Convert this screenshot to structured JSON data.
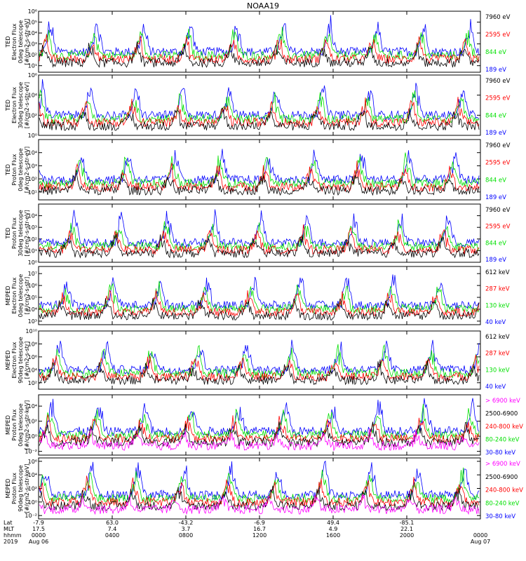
{
  "title": "NOAA19",
  "colors": {
    "black": "#000000",
    "red": "#ff0000",
    "green": "#00e000",
    "blue": "#0000ff",
    "magenta": "#ff00ff"
  },
  "chart_data": [
    {
      "type": "line",
      "title": "",
      "ylabel": [
        "TED",
        "Electron Flux",
        "0deg telescope",
        "[#/cm2-s-str-eV]"
      ],
      "ytick_labels": [
        "10¹",
        "10²",
        "10³",
        "10⁴",
        "10⁵",
        "10⁶"
      ],
      "yexp_range": [
        0.4,
        6
      ],
      "series": [
        {
          "name": "7960 eV",
          "color": "#000000"
        },
        {
          "name": "2595 eV",
          "color": "#ff0000"
        },
        {
          "name": "844 eV",
          "color": "#00e000"
        },
        {
          "name": "189 eV",
          "color": "#0000ff"
        }
      ]
    },
    {
      "type": "line",
      "title": "",
      "ylabel": [
        "TED",
        "Electron Flux",
        "30deg telescope",
        "[#/cm2-s-str-eV]"
      ],
      "ytick_labels": [
        "10⁰",
        "10²",
        "10⁴",
        "10⁶"
      ],
      "yexp_range": [
        0,
        6
      ],
      "series": [
        {
          "name": "7960 eV",
          "color": "#000000"
        },
        {
          "name": "2595 eV",
          "color": "#ff0000"
        },
        {
          "name": "844 eV",
          "color": "#00e000"
        },
        {
          "name": "189 eV",
          "color": "#0000ff"
        }
      ]
    },
    {
      "type": "line",
      "title": "",
      "ylabel": [
        "TED",
        "Proton Flux",
        "0deg telescope",
        "[#/cm2-s-str-eV]"
      ],
      "ytick_labels": [
        "10¹",
        "10²",
        "10³",
        "10⁴"
      ],
      "yexp_range": [
        0.4,
        5
      ],
      "series": [
        {
          "name": "7960 eV",
          "color": "#000000"
        },
        {
          "name": "2595 eV",
          "color": "#ff0000"
        },
        {
          "name": "844 eV",
          "color": "#00e000"
        },
        {
          "name": "189 eV",
          "color": "#0000ff"
        }
      ]
    },
    {
      "type": "line",
      "title": "",
      "ylabel": [
        "TED",
        "Proton Flux",
        "30deg telescope",
        "[#/cm2-s-str-eV]"
      ],
      "ytick_labels": [
        "10⁰",
        "10¹",
        "10²",
        "10³",
        "10⁴"
      ],
      "yexp_range": [
        0,
        5
      ],
      "series": [
        {
          "name": "7960 eV",
          "color": "#000000"
        },
        {
          "name": "2595 eV",
          "color": "#ff0000"
        },
        {
          "name": "844 eV",
          "color": "#00e000"
        },
        {
          "name": "189 eV",
          "color": "#0000ff"
        }
      ]
    },
    {
      "type": "line",
      "title": "",
      "ylabel": [
        "MEPED",
        "Electron Flux",
        "0deg telescope",
        "[#/cm2-s-str]"
      ],
      "ytick_labels": [
        "10³",
        "10⁴",
        "10⁵",
        "10⁶",
        "10⁷"
      ],
      "yexp_range": [
        2.7,
        7.6
      ],
      "series": [
        {
          "name": "612 keV",
          "color": "#000000"
        },
        {
          "name": "287 keV",
          "color": "#ff0000"
        },
        {
          "name": "130 keV",
          "color": "#00e000"
        },
        {
          "name": "40 keV",
          "color": "#0000ff"
        }
      ]
    },
    {
      "type": "line",
      "title": "",
      "ylabel": [
        "MEPED",
        "Electron Flux",
        "90deg telescope",
        "[#/cm2-s-str]"
      ],
      "ytick_labels": [
        "10²",
        "10⁴",
        "10⁶",
        "10⁸",
        "10¹⁰"
      ],
      "yexp_range": [
        1,
        10
      ],
      "series": [
        {
          "name": "612 keV",
          "color": "#000000"
        },
        {
          "name": "287 keV",
          "color": "#ff0000"
        },
        {
          "name": "130 keV",
          "color": "#00e000"
        },
        {
          "name": "40 keV",
          "color": "#0000ff"
        }
      ]
    },
    {
      "type": "line",
      "title": "",
      "ylabel": [
        "MEPED",
        "Proton Flux",
        "0deg telescope",
        "[#/cm2-s-str-keV]"
      ],
      "ytick_labels": [
        "10⁻²",
        "10⁰",
        "10²",
        "10⁴"
      ],
      "yexp_range": [
        -2.5,
        5.5
      ],
      "series": [
        {
          "name": "> 6900 keV",
          "color": "#ff00ff"
        },
        {
          "name": "2500-6900",
          "color": "#000000"
        },
        {
          "name": "240-800 keV",
          "color": "#ff0000"
        },
        {
          "name": "80-240 keV",
          "color": "#00e000"
        },
        {
          "name": "30-80 keV",
          "color": "#0000ff"
        }
      ]
    },
    {
      "type": "line",
      "title": "",
      "ylabel": [
        "MEPED",
        "Proton Flux",
        "90deg telescope",
        "[#/cm2-s-str-keV]"
      ],
      "ytick_labels": [
        "10⁻²",
        "10⁰",
        "10²",
        "10⁴",
        "10⁶"
      ],
      "yexp_range": [
        -2.5,
        6.5
      ],
      "series": [
        {
          "name": "> 6900 keV",
          "color": "#ff00ff"
        },
        {
          "name": "2500-6900",
          "color": "#000000"
        },
        {
          "name": "240-800 keV",
          "color": "#ff0000"
        },
        {
          "name": "80-240 keV",
          "color": "#00e000"
        },
        {
          "name": "30-80 keV",
          "color": "#0000ff"
        }
      ]
    }
  ],
  "xaxis": {
    "row_labels": [
      "Lat",
      "MLT",
      "hhmm",
      "2019"
    ],
    "tick_hours": [
      0,
      4,
      8,
      12,
      16,
      20,
      24
    ],
    "columns": [
      {
        "lat": "-7.9",
        "mlt": "17.5",
        "hhmm": "0000",
        "date": "Aug 06"
      },
      {
        "lat": "63.0",
        "mlt": "7.4",
        "hhmm": "0400",
        "date": ""
      },
      {
        "lat": "-43.2",
        "mlt": "3.7",
        "hhmm": "0800",
        "date": ""
      },
      {
        "lat": "-6.9",
        "mlt": "16.7",
        "hhmm": "1200",
        "date": ""
      },
      {
        "lat": "49.4",
        "mlt": "4.9",
        "hhmm": "1600",
        "date": ""
      },
      {
        "lat": "-85.1",
        "mlt": "22.1",
        "hhmm": "2000",
        "date": ""
      },
      {
        "lat": "",
        "mlt": "",
        "hhmm": "0000",
        "date": "Aug 07"
      }
    ]
  }
}
